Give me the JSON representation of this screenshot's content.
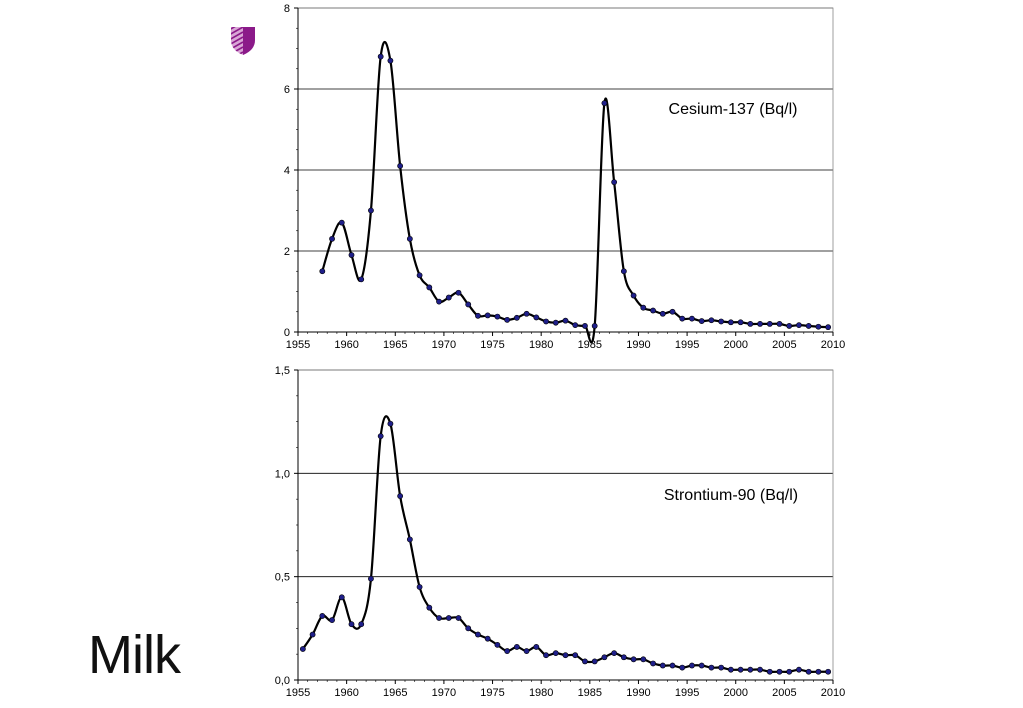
{
  "slide": {
    "title": "Milk",
    "logo_icon": "shield-logo-icon"
  },
  "colors": {
    "line": "#000000",
    "marker": "#1f1f8a",
    "gridline": "#000000",
    "logo_dark": "#8b1a89",
    "logo_light": "#d9a6d6"
  },
  "chart_data": [
    {
      "type": "line",
      "annotation": "Cesium-137 (Bq/l)",
      "xlim": [
        1955,
        2010
      ],
      "ylim": [
        0,
        8
      ],
      "xticks": [
        1955,
        1960,
        1965,
        1970,
        1975,
        1980,
        1985,
        1990,
        1995,
        2000,
        2005,
        2010
      ],
      "yticks": [
        0,
        2,
        4,
        6,
        8
      ],
      "ytick_labels": [
        "0",
        "2",
        "4",
        "6",
        "8"
      ],
      "grid": true,
      "series": [
        {
          "x": [
            1957.5,
            1958.5,
            1959.5,
            1960.5,
            1961.5,
            1962.5,
            1963.5,
            1964.5,
            1965.5,
            1966.5,
            1967.5,
            1968.5,
            1969.5,
            1970.5,
            1971.5,
            1972.5,
            1973.5,
            1974.5,
            1975.5,
            1976.5,
            1977.5,
            1978.5,
            1979.5,
            1980.5,
            1981.5,
            1982.5,
            1983.5,
            1984.5,
            1985.5,
            1986.5,
            1987.5,
            1988.5,
            1989.5,
            1990.5,
            1991.5,
            1992.5,
            1993.5,
            1994.5,
            1995.5,
            1996.5,
            1997.5,
            1998.5,
            1999.5,
            2000.5,
            2001.5,
            2002.5,
            2003.5,
            2004.5,
            2005.5,
            2006.5,
            2007.5,
            2008.5,
            2009.5
          ],
          "y": [
            1.5,
            2.3,
            2.7,
            1.9,
            1.3,
            3.0,
            6.8,
            6.7,
            4.1,
            2.3,
            1.4,
            1.1,
            0.75,
            0.85,
            0.97,
            0.68,
            0.4,
            0.41,
            0.38,
            0.3,
            0.35,
            0.45,
            0.36,
            0.26,
            0.23,
            0.28,
            0.17,
            0.15,
            0.15,
            5.65,
            3.7,
            1.5,
            0.9,
            0.6,
            0.53,
            0.45,
            0.5,
            0.33,
            0.33,
            0.27,
            0.29,
            0.26,
            0.24,
            0.24,
            0.2,
            0.2,
            0.2,
            0.2,
            0.15,
            0.17,
            0.15,
            0.13,
            0.12
          ]
        }
      ]
    },
    {
      "type": "line",
      "annotation": "Strontium-90 (Bq/l)",
      "xlim": [
        1955,
        2010
      ],
      "ylim": [
        0,
        1.5
      ],
      "xticks": [
        1955,
        1960,
        1965,
        1970,
        1975,
        1980,
        1985,
        1990,
        1995,
        2000,
        2005,
        2010
      ],
      "yticks": [
        0,
        0.5,
        1.0,
        1.5
      ],
      "ytick_labels": [
        "0,0",
        "0,5",
        "1,0",
        "1,5"
      ],
      "grid": true,
      "series": [
        {
          "x": [
            1955.5,
            1956.5,
            1957.5,
            1958.5,
            1959.5,
            1960.5,
            1961.5,
            1962.5,
            1963.5,
            1964.5,
            1965.5,
            1966.5,
            1967.5,
            1968.5,
            1969.5,
            1970.5,
            1971.5,
            1972.5,
            1973.5,
            1974.5,
            1975.5,
            1976.5,
            1977.5,
            1978.5,
            1979.5,
            1980.5,
            1981.5,
            1982.5,
            1983.5,
            1984.5,
            1985.5,
            1986.5,
            1987.5,
            1988.5,
            1989.5,
            1990.5,
            1991.5,
            1992.5,
            1993.5,
            1994.5,
            1995.5,
            1996.5,
            1997.5,
            1998.5,
            1999.5,
            2000.5,
            2001.5,
            2002.5,
            2003.5,
            2004.5,
            2005.5,
            2006.5,
            2007.5,
            2008.5,
            2009.5
          ],
          "y": [
            0.15,
            0.22,
            0.31,
            0.29,
            0.4,
            0.27,
            0.27,
            0.49,
            1.18,
            1.24,
            0.89,
            0.68,
            0.45,
            0.35,
            0.3,
            0.3,
            0.3,
            0.25,
            0.22,
            0.2,
            0.17,
            0.14,
            0.16,
            0.14,
            0.16,
            0.12,
            0.13,
            0.12,
            0.12,
            0.09,
            0.09,
            0.11,
            0.13,
            0.11,
            0.1,
            0.1,
            0.08,
            0.07,
            0.07,
            0.06,
            0.07,
            0.07,
            0.06,
            0.06,
            0.05,
            0.05,
            0.05,
            0.05,
            0.04,
            0.04,
            0.04,
            0.05,
            0.04,
            0.04,
            0.04
          ]
        }
      ]
    }
  ]
}
